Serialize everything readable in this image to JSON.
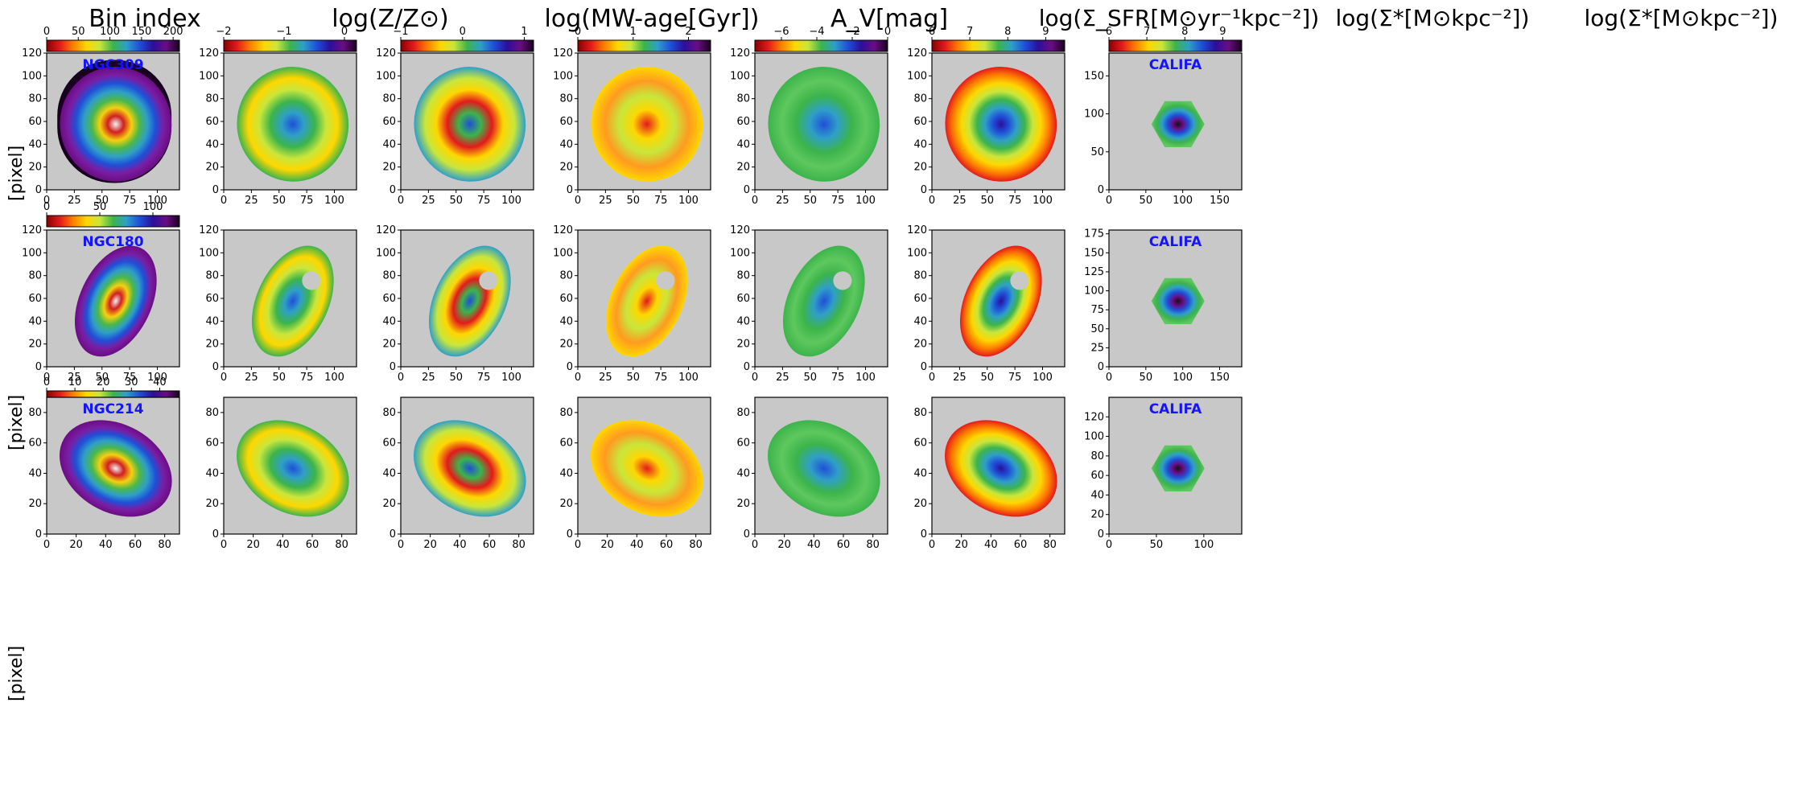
{
  "column_titles": [
    "Bin index",
    "log(Z/Z⊙)",
    "log(MW-age[Gyr])",
    "A_V[mag]",
    "log(Σ_SFR[M⊙yr⁻¹kpc⁻²])",
    "log(Σ*[M⊙kpc⁻²])",
    "log(Σ*[M⊙kpc⁻²])"
  ],
  "row_ylabel": "[pixel]",
  "galaxies": [
    "NGC309",
    "NGC180",
    "NGC214"
  ],
  "survey_label": "CALIFA",
  "colors": {
    "panel_background": "#c8c8c8",
    "galaxy_label": "#1414ff",
    "colormap": [
      "#8b0000",
      "#e31a1c",
      "#ff7f00",
      "#ffd700",
      "#c8e63c",
      "#3cb44b",
      "#2f9fc8",
      "#1f4fd8",
      "#2b0f9a",
      "#6a0d83",
      "#1a0020"
    ]
  },
  "chart_data": [
    {
      "type": "heatmap",
      "row": 0,
      "col": 0,
      "title": "Bin index",
      "annotation": "NGC309",
      "colorbar_ticks": [
        "0",
        "50",
        "100",
        "150",
        "200"
      ],
      "colorbar_range": [
        0,
        210
      ],
      "xticks": [
        "0",
        "25",
        "50",
        "75",
        "100"
      ],
      "yticks": [
        "0",
        "20",
        "40",
        "60",
        "80",
        "100",
        "120"
      ],
      "xlim": [
        0,
        120
      ],
      "ylim": [
        0,
        120
      ],
      "ylabel": "[pixel]"
    },
    {
      "type": "heatmap",
      "row": 0,
      "col": 1,
      "title": "log(Z/Z⊙)",
      "colorbar_ticks": [
        "−2",
        "−1",
        "0"
      ],
      "colorbar_range": [
        -2,
        0.2
      ],
      "xticks": [
        "0",
        "25",
        "50",
        "75",
        "100"
      ],
      "yticks": [
        "0",
        "20",
        "40",
        "60",
        "80",
        "100",
        "120"
      ],
      "xlim": [
        0,
        120
      ],
      "ylim": [
        0,
        120
      ]
    },
    {
      "type": "heatmap",
      "row": 0,
      "col": 2,
      "title": "log(MW-age[Gyr])",
      "colorbar_ticks": [
        "−1",
        "0",
        "1"
      ],
      "colorbar_range": [
        -1,
        1.15
      ],
      "xticks": [
        "0",
        "25",
        "50",
        "75",
        "100"
      ],
      "yticks": [
        "0",
        "20",
        "40",
        "60",
        "80",
        "100",
        "120"
      ],
      "xlim": [
        0,
        120
      ],
      "ylim": [
        0,
        120
      ]
    },
    {
      "type": "heatmap",
      "row": 0,
      "col": 3,
      "title": "A_V[mag]",
      "colorbar_ticks": [
        "0",
        "1",
        "2"
      ],
      "colorbar_range": [
        0,
        2.4
      ],
      "xticks": [
        "0",
        "25",
        "50",
        "75",
        "100"
      ],
      "yticks": [
        "0",
        "20",
        "40",
        "60",
        "80",
        "100",
        "120"
      ],
      "xlim": [
        0,
        120
      ],
      "ylim": [
        0,
        120
      ]
    },
    {
      "type": "heatmap",
      "row": 0,
      "col": 4,
      "title": "log(Σ_SFR[M⊙yr⁻¹kpc⁻²])",
      "colorbar_ticks": [
        "−6",
        "−4",
        "−2",
        "0"
      ],
      "colorbar_range": [
        -7.5,
        0
      ],
      "xticks": [
        "0",
        "25",
        "50",
        "75",
        "100"
      ],
      "yticks": [
        "0",
        "20",
        "40",
        "60",
        "80",
        "100",
        "120"
      ],
      "xlim": [
        0,
        120
      ],
      "ylim": [
        0,
        120
      ]
    },
    {
      "type": "heatmap",
      "row": 0,
      "col": 5,
      "title": "log(Σ*[M⊙kpc⁻²])",
      "colorbar_ticks": [
        "6",
        "7",
        "8",
        "9"
      ],
      "colorbar_range": [
        6,
        9.5
      ],
      "xticks": [
        "0",
        "25",
        "50",
        "75",
        "100"
      ],
      "yticks": [
        "0",
        "20",
        "40",
        "60",
        "80",
        "100",
        "120"
      ],
      "xlim": [
        0,
        120
      ],
      "ylim": [
        0,
        120
      ]
    },
    {
      "type": "heatmap",
      "row": 0,
      "col": 6,
      "title": "log(Σ*[M⊙kpc⁻²])",
      "annotation": "CALIFA",
      "colorbar_ticks": [
        "6",
        "7",
        "8",
        "9"
      ],
      "colorbar_range": [
        6,
        9.5
      ],
      "xticks": [
        "0",
        "50",
        "100",
        "150"
      ],
      "yticks": [
        "0",
        "50",
        "100",
        "150"
      ],
      "xlim": [
        0,
        180
      ],
      "ylim": [
        0,
        180
      ]
    },
    {
      "type": "heatmap",
      "row": 1,
      "col": 0,
      "annotation": "NGC180",
      "colorbar_ticks": [
        "0",
        "50",
        "100"
      ],
      "colorbar_range": [
        0,
        125
      ],
      "xticks": [
        "0",
        "25",
        "50",
        "75",
        "100"
      ],
      "yticks": [
        "0",
        "20",
        "40",
        "60",
        "80",
        "100",
        "120"
      ],
      "xlim": [
        0,
        120
      ],
      "ylim": [
        0,
        120
      ],
      "ylabel": "[pixel]"
    },
    {
      "type": "heatmap",
      "row": 1,
      "col": 1,
      "xticks": [
        "0",
        "25",
        "50",
        "75",
        "100"
      ],
      "yticks": [
        "0",
        "20",
        "40",
        "60",
        "80",
        "100",
        "120"
      ],
      "xlim": [
        0,
        120
      ],
      "ylim": [
        0,
        120
      ]
    },
    {
      "type": "heatmap",
      "row": 1,
      "col": 2,
      "xticks": [
        "0",
        "25",
        "50",
        "75",
        "100"
      ],
      "yticks": [
        "0",
        "20",
        "40",
        "60",
        "80",
        "100",
        "120"
      ],
      "xlim": [
        0,
        120
      ],
      "ylim": [
        0,
        120
      ]
    },
    {
      "type": "heatmap",
      "row": 1,
      "col": 3,
      "xticks": [
        "0",
        "25",
        "50",
        "75",
        "100"
      ],
      "yticks": [
        "0",
        "20",
        "40",
        "60",
        "80",
        "100",
        "120"
      ],
      "xlim": [
        0,
        120
      ],
      "ylim": [
        0,
        120
      ]
    },
    {
      "type": "heatmap",
      "row": 1,
      "col": 4,
      "xticks": [
        "0",
        "25",
        "50",
        "75",
        "100"
      ],
      "yticks": [
        "0",
        "20",
        "40",
        "60",
        "80",
        "100",
        "120"
      ],
      "xlim": [
        0,
        120
      ],
      "ylim": [
        0,
        120
      ]
    },
    {
      "type": "heatmap",
      "row": 1,
      "col": 5,
      "xticks": [
        "0",
        "25",
        "50",
        "75",
        "100"
      ],
      "yticks": [
        "0",
        "20",
        "40",
        "60",
        "80",
        "100",
        "120"
      ],
      "xlim": [
        0,
        120
      ],
      "ylim": [
        0,
        120
      ]
    },
    {
      "type": "heatmap",
      "row": 1,
      "col": 6,
      "annotation": "CALIFA",
      "xticks": [
        "0",
        "50",
        "100",
        "150"
      ],
      "yticks": [
        "0",
        "25",
        "50",
        "75",
        "100",
        "125",
        "150",
        "175"
      ],
      "xlim": [
        0,
        180
      ],
      "ylim": [
        0,
        180
      ]
    },
    {
      "type": "heatmap",
      "row": 2,
      "col": 0,
      "annotation": "NGC214",
      "colorbar_ticks": [
        "0",
        "10",
        "20",
        "30",
        "40"
      ],
      "colorbar_range": [
        0,
        47
      ],
      "xticks": [
        "0",
        "20",
        "40",
        "60",
        "80"
      ],
      "yticks": [
        "0",
        "20",
        "40",
        "60",
        "80"
      ],
      "xlim": [
        0,
        90
      ],
      "ylim": [
        0,
        90
      ],
      "ylabel": "[pixel]"
    },
    {
      "type": "heatmap",
      "row": 2,
      "col": 1,
      "xticks": [
        "0",
        "20",
        "40",
        "60",
        "80"
      ],
      "yticks": [
        "0",
        "20",
        "40",
        "60",
        "80"
      ],
      "xlim": [
        0,
        90
      ],
      "ylim": [
        0,
        90
      ]
    },
    {
      "type": "heatmap",
      "row": 2,
      "col": 2,
      "xticks": [
        "0",
        "20",
        "40",
        "60",
        "80"
      ],
      "yticks": [
        "0",
        "20",
        "40",
        "60",
        "80"
      ],
      "xlim": [
        0,
        90
      ],
      "ylim": [
        0,
        90
      ]
    },
    {
      "type": "heatmap",
      "row": 2,
      "col": 3,
      "xticks": [
        "0",
        "20",
        "40",
        "60",
        "80"
      ],
      "yticks": [
        "0",
        "20",
        "40",
        "60",
        "80"
      ],
      "xlim": [
        0,
        90
      ],
      "ylim": [
        0,
        90
      ]
    },
    {
      "type": "heatmap",
      "row": 2,
      "col": 4,
      "xticks": [
        "0",
        "20",
        "40",
        "60",
        "80"
      ],
      "yticks": [
        "0",
        "20",
        "40",
        "60",
        "80"
      ],
      "xlim": [
        0,
        90
      ],
      "ylim": [
        0,
        90
      ]
    },
    {
      "type": "heatmap",
      "row": 2,
      "col": 5,
      "xticks": [
        "0",
        "20",
        "40",
        "60",
        "80"
      ],
      "yticks": [
        "0",
        "20",
        "40",
        "60",
        "80"
      ],
      "xlim": [
        0,
        90
      ],
      "ylim": [
        0,
        90
      ]
    },
    {
      "type": "heatmap",
      "row": 2,
      "col": 6,
      "annotation": "CALIFA",
      "xticks": [
        "0",
        "50",
        "100"
      ],
      "yticks": [
        "0",
        "20",
        "40",
        "60",
        "80",
        "100",
        "120"
      ],
      "xlim": [
        0,
        140
      ],
      "ylim": [
        0,
        140
      ]
    }
  ]
}
